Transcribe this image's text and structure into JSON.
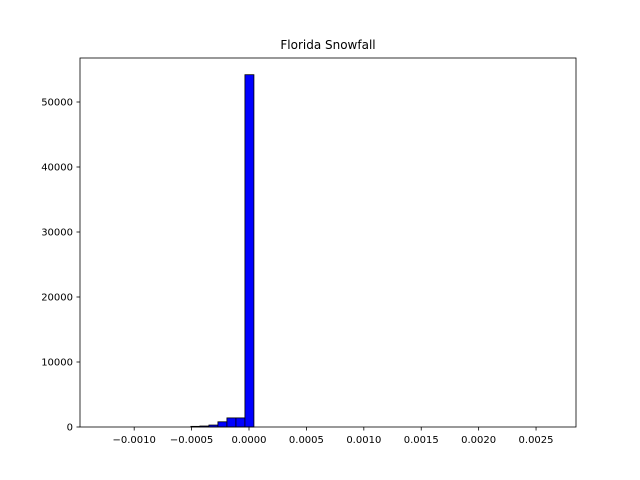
{
  "chart_data": {
    "type": "histogram",
    "title": "Florida Snowfall",
    "bins": [
      -0.00129,
      -0.0012116,
      -0.0011332,
      -0.0010548,
      -0.0009764,
      -0.000898,
      -0.0008196,
      -0.0007412,
      -0.0006628,
      -0.0005844,
      -0.000506,
      -0.0004276,
      -0.0003492,
      -0.0002708,
      -0.0001924,
      -0.000114,
      -3.56e-05,
      4.28e-05,
      0.0001212,
      0.0001996,
      0.000278,
      0.0003564,
      0.0004348,
      0.0005132,
      0.0005916,
      0.00067,
      0.0007484,
      0.0008268,
      0.0009052,
      0.0009836,
      0.001062,
      0.0011404,
      0.0012188,
      0.0012972,
      0.0013756,
      0.001454,
      0.0015324,
      0.0016108,
      0.0016892,
      0.0017676,
      0.001846,
      0.0019244,
      0.0020028,
      0.0020812,
      0.0021596,
      0.002238,
      0.0023164,
      0.0023948,
      0.0024732,
      0.0025516,
      0.00263
    ],
    "values": [
      0,
      0,
      0,
      0,
      0,
      0,
      0,
      0,
      0,
      0,
      100,
      150,
      300,
      800,
      1400,
      1400,
      54200,
      0,
      0,
      0,
      0,
      0,
      0,
      0,
      0,
      0,
      0,
      0,
      0,
      0,
      0,
      0,
      0,
      0,
      0,
      0,
      0,
      0,
      0,
      0,
      0,
      0,
      0,
      0,
      0,
      0,
      0,
      0,
      0,
      0
    ],
    "color": "#0000ff",
    "edgecolor": "#000000",
    "xlim": [
      -0.001472,
      0.002848
    ],
    "ylim": [
      0,
      56770
    ],
    "xticks": [
      {
        "value": -0.001,
        "label": "−0.0010"
      },
      {
        "value": -0.0005,
        "label": "−0.0005"
      },
      {
        "value": 0,
        "label": "0.0000"
      },
      {
        "value": 0.0005,
        "label": "0.0005"
      },
      {
        "value": 0.001,
        "label": "0.0010"
      },
      {
        "value": 0.0015,
        "label": "0.0015"
      },
      {
        "value": 0.002,
        "label": "0.0020"
      },
      {
        "value": 0.0025,
        "label": "0.0025"
      }
    ],
    "yticks": [
      0,
      10000,
      20000,
      30000,
      40000,
      50000
    ]
  }
}
